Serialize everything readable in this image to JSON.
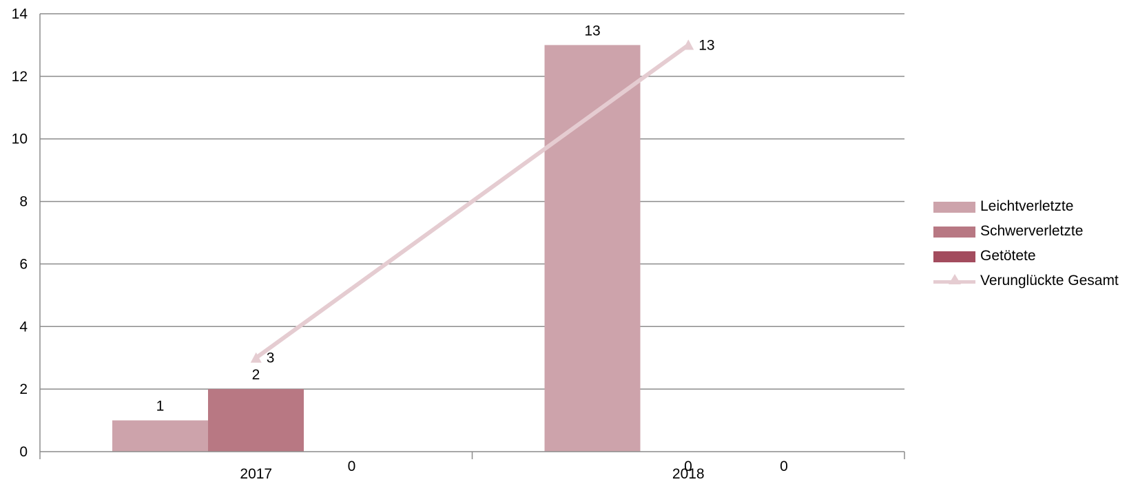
{
  "chart_data": {
    "type": "bar",
    "categories": [
      "2017",
      "2018"
    ],
    "ylim": [
      0,
      14
    ],
    "yticks": [
      0,
      2,
      4,
      6,
      8,
      10,
      12,
      14
    ],
    "grid": true,
    "legend_position": "right",
    "series": [
      {
        "name": "Leichtverletzte",
        "type": "bar",
        "color": "#cda3ab",
        "values": [
          1,
          13
        ],
        "labels": [
          "1",
          "13"
        ]
      },
      {
        "name": "Schwerverletzte",
        "type": "bar",
        "color": "#b87883",
        "values": [
          2,
          0
        ],
        "labels": [
          "2",
          "0"
        ]
      },
      {
        "name": "Getötete",
        "type": "bar",
        "color": "#a34c5e",
        "values": [
          0,
          0
        ],
        "labels": [
          "0",
          "0"
        ]
      },
      {
        "name": "Verunglückte Gesamt",
        "type": "line",
        "marker": "triangle",
        "color": "#e5ccd1",
        "values": [
          3,
          13
        ],
        "labels": [
          "3",
          "13"
        ]
      }
    ]
  }
}
